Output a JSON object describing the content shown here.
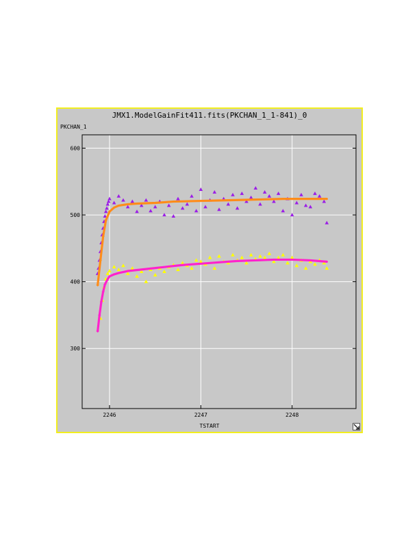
{
  "window": {
    "title": "JMX1.ModelGainFit411.fits(PKCHAN_1_1-841)_0",
    "border_color": "#f2ee1e",
    "background": "#c8c8c8"
  },
  "resize_icon": "resize-arrow-icon",
  "chart_data": {
    "type": "scatter",
    "title": "JMX1.ModelGainFit411.fits(PKCHAN_1_1-841)_0",
    "xlabel": "TSTART",
    "ylabel": "PKCHAN_1",
    "xlim": [
      2245.7,
      2248.7
    ],
    "ylim": [
      210,
      620
    ],
    "xticks": [
      2246,
      2247,
      2248
    ],
    "xtick_labels": [
      "2246",
      "2247",
      "2248"
    ],
    "yticks": [
      300,
      400,
      500,
      600
    ],
    "ytick_labels": [
      "300",
      "400",
      "500",
      "600"
    ],
    "grid": true,
    "series": [
      {
        "marker": "triangle",
        "color": "#9b1ee6",
        "x": [
          2245.87,
          2245.88,
          2245.89,
          2245.9,
          2245.91,
          2245.92,
          2245.93,
          2245.94,
          2245.95,
          2245.96,
          2245.97,
          2245.98,
          2245.99,
          2246.0,
          2246.05,
          2246.1,
          2246.15,
          2246.2,
          2246.25,
          2246.3,
          2246.35,
          2246.4,
          2246.45,
          2246.5,
          2246.55,
          2246.6,
          2246.65,
          2246.7,
          2246.75,
          2246.8,
          2246.85,
          2246.9,
          2246.95,
          2247.0,
          2247.05,
          2247.1,
          2247.15,
          2247.2,
          2247.25,
          2247.3,
          2247.35,
          2247.4,
          2247.45,
          2247.5,
          2247.55,
          2247.6,
          2247.65,
          2247.7,
          2247.75,
          2247.8,
          2247.85,
          2247.9,
          2247.95,
          2248.0,
          2248.05,
          2248.1,
          2248.15,
          2248.2,
          2248.25,
          2248.3,
          2248.35,
          2248.38
        ],
        "y": [
          412,
          420,
          432,
          445,
          458,
          470,
          480,
          490,
          498,
          505,
          510,
          516,
          520,
          524,
          518,
          528,
          522,
          512,
          520,
          505,
          514,
          522,
          506,
          512,
          520,
          500,
          514,
          498,
          524,
          510,
          516,
          528,
          506,
          538,
          512,
          522,
          534,
          508,
          524,
          516,
          530,
          510,
          532,
          520,
          526,
          540,
          516,
          534,
          528,
          520,
          532,
          506,
          524,
          500,
          518,
          530,
          514,
          512,
          532,
          528,
          520,
          488
        ]
      },
      {
        "marker": "triangle",
        "color": "#ffff00",
        "x": [
          2245.9,
          2245.92,
          2245.94,
          2245.96,
          2245.98,
          2246.0,
          2246.05,
          2246.1,
          2246.15,
          2246.2,
          2246.25,
          2246.3,
          2246.35,
          2246.4,
          2246.45,
          2246.5,
          2246.55,
          2246.6,
          2246.65,
          2246.7,
          2246.75,
          2246.8,
          2246.85,
          2246.9,
          2246.95,
          2247.0,
          2247.05,
          2247.1,
          2247.15,
          2247.2,
          2247.25,
          2247.3,
          2247.35,
          2247.4,
          2247.45,
          2247.5,
          2247.55,
          2247.6,
          2247.65,
          2247.7,
          2247.75,
          2247.8,
          2247.85,
          2247.9,
          2247.95,
          2248.0,
          2248.05,
          2248.1,
          2248.15,
          2248.2,
          2248.25,
          2248.3,
          2248.35,
          2248.38
        ],
        "y": [
          345,
          372,
          392,
          404,
          412,
          416,
          422,
          418,
          424,
          412,
          420,
          408,
          415,
          400,
          418,
          410,
          420,
          415,
          422,
          425,
          418,
          428,
          424,
          420,
          432,
          430,
          426,
          436,
          420,
          438,
          430,
          428,
          440,
          432,
          436,
          428,
          440,
          434,
          438,
          436,
          442,
          430,
          436,
          440,
          428,
          436,
          424,
          432,
          420,
          430,
          426,
          432,
          428,
          420
        ]
      }
    ],
    "fits": [
      {
        "color": "#ff8c1a",
        "x": [
          2245.87,
          2245.9,
          2245.93,
          2245.96,
          2246.0,
          2246.05,
          2246.1,
          2246.2,
          2246.3,
          2246.5,
          2246.7,
          2247.0,
          2247.3,
          2247.6,
          2247.9,
          2248.2,
          2248.38
        ],
        "y": [
          395,
          432,
          468,
          492,
          505,
          511,
          514,
          516,
          517,
          518,
          520,
          521,
          522,
          523,
          524,
          524,
          524
        ]
      },
      {
        "color": "#ff22cc",
        "x": [
          2245.87,
          2245.89,
          2245.91,
          2245.93,
          2245.95,
          2245.98,
          2246.0,
          2246.05,
          2246.1,
          2246.2,
          2246.4,
          2246.6,
          2246.8,
          2247.0,
          2247.2,
          2247.4,
          2247.6,
          2247.8,
          2248.0,
          2248.2,
          2248.38
        ],
        "y": [
          326,
          350,
          370,
          385,
          396,
          404,
          408,
          411,
          413,
          416,
          419,
          422,
          425,
          427,
          429,
          431,
          432,
          433,
          433,
          432,
          430
        ]
      }
    ]
  }
}
